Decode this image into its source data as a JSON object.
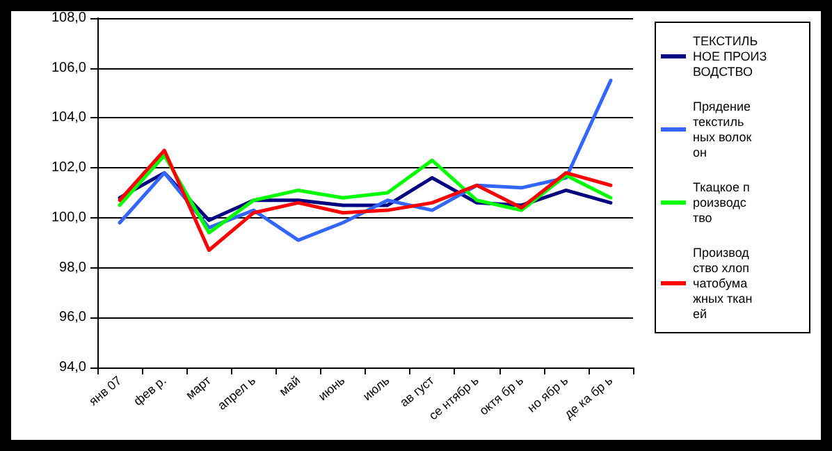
{
  "chart_data": {
    "type": "line",
    "categories": [
      "янв 07",
      "фев р.",
      "март",
      "апрел ь",
      "май",
      "июнь",
      "июль",
      "ав густ",
      "се нтябр ь",
      "октя бр ь",
      "но ябр ь",
      "де ка бр ь"
    ],
    "ylim": [
      94,
      108
    ],
    "yticks": [
      {
        "value": 94,
        "label": "94,0"
      },
      {
        "value": 96,
        "label": "96,0"
      },
      {
        "value": 98,
        "label": "98,0"
      },
      {
        "value": 100,
        "label": "100,0"
      },
      {
        "value": 102,
        "label": "102,0"
      },
      {
        "value": 104,
        "label": "104,0"
      },
      {
        "value": 106,
        "label": "106,0"
      },
      {
        "value": 108,
        "label": "108,0"
      }
    ],
    "grid": "y",
    "legend": "right",
    "marker": "none",
    "line_style": "solid",
    "series": [
      {
        "name": "ТЕКСТИЛЬНОЕ ПРОИЗВОДСТВО",
        "color": "#000080",
        "values": [
          100.8,
          101.8,
          99.9,
          100.7,
          100.7,
          100.5,
          100.5,
          101.6,
          100.6,
          100.5,
          101.1,
          100.6
        ]
      },
      {
        "name": "Прядение текстильных волокон",
        "color": "#3366ff",
        "values": [
          99.8,
          101.8,
          99.6,
          100.3,
          99.1,
          99.8,
          100.7,
          100.3,
          101.3,
          101.2,
          101.6,
          105.5
        ]
      },
      {
        "name": "Ткацкое производство",
        "color": "#00ff00",
        "values": [
          100.5,
          102.5,
          99.4,
          100.7,
          101.1,
          100.8,
          101.0,
          102.3,
          100.7,
          100.3,
          101.7,
          100.8
        ]
      },
      {
        "name": "Производство хлопчатобумажных тканей",
        "color": "#ff0000",
        "values": [
          100.7,
          102.7,
          98.7,
          100.2,
          100.6,
          100.2,
          100.3,
          100.6,
          101.3,
          100.4,
          101.8,
          101.3
        ]
      }
    ]
  }
}
